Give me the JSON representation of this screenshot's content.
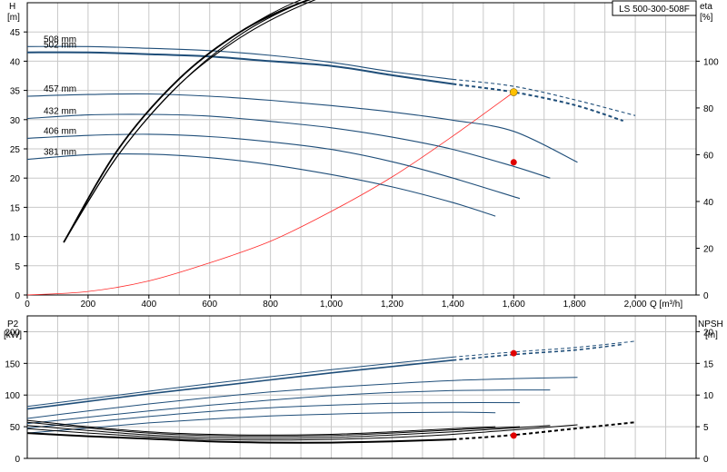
{
  "chart_data": [
    {
      "type": "line",
      "panel": "H-Q / eta",
      "title": "LS 500-300-508F",
      "xlabel": "Q [m³/h]",
      "ylabel_left": [
        "H",
        "[m]"
      ],
      "ylabel_right": [
        "eta",
        "[%]"
      ],
      "xlim": [
        0,
        2200
      ],
      "ylim_left": [
        0,
        50
      ],
      "ylim_right": [
        0,
        125
      ],
      "x_ticks": [
        "0",
        "200",
        "400",
        "600",
        "800",
        "1,000",
        "1,200",
        "1,400",
        "1,600",
        "1,800",
        "2,000"
      ],
      "x_tick_values": [
        0,
        200,
        400,
        600,
        800,
        1000,
        1200,
        1400,
        1600,
        1800,
        2000
      ],
      "y_ticks_left": [
        0,
        5,
        10,
        15,
        20,
        25,
        30,
        35,
        40,
        45
      ],
      "y_ticks_right": [
        0,
        20,
        40,
        60,
        80,
        100
      ],
      "grid": true,
      "colors": {
        "curve": "#1f4e79",
        "system": "#ff2a2a",
        "eta": "#000000",
        "duty_h": "#ffc000",
        "duty_eta": "#e00000"
      },
      "head_curves": [
        {
          "label": "508 mm",
          "x": [
            0,
            200,
            400,
            600,
            800,
            1000,
            1200,
            1400,
            1600,
            1800,
            2000
          ],
          "y": [
            42.5,
            42.5,
            42.2,
            41.8,
            41.0,
            39.8,
            38.2,
            36.9,
            35.7,
            33.4,
            30.7
          ],
          "solid_until": 1400
        },
        {
          "label": "502 mm",
          "x": [
            0,
            200,
            400,
            600,
            800,
            1000,
            1200,
            1400,
            1600,
            1800,
            1960
          ],
          "y": [
            41.5,
            41.5,
            41.2,
            40.8,
            40.0,
            39.2,
            37.6,
            36.1,
            34.7,
            32.5,
            29.8
          ],
          "solid_until": 1400
        },
        {
          "label": "457 mm",
          "x": [
            0,
            200,
            400,
            600,
            800,
            1000,
            1200,
            1400,
            1600,
            1810
          ],
          "y": [
            34.0,
            34.3,
            34.4,
            34.0,
            33.3,
            32.4,
            31.3,
            29.9,
            28.0,
            22.7
          ],
          "solid_until": 1810
        },
        {
          "label": "432 mm",
          "x": [
            0,
            200,
            400,
            600,
            800,
            1000,
            1200,
            1400,
            1600,
            1720
          ],
          "y": [
            30.2,
            30.8,
            30.9,
            30.6,
            29.7,
            28.6,
            27.0,
            24.9,
            22.0,
            20.0
          ],
          "solid_until": 1720
        },
        {
          "label": "406 mm",
          "x": [
            0,
            200,
            400,
            600,
            800,
            1000,
            1200,
            1400,
            1620
          ],
          "y": [
            26.8,
            27.3,
            27.5,
            27.1,
            26.2,
            24.9,
            22.8,
            20.0,
            16.5
          ],
          "solid_until": 1620
        },
        {
          "label": "381 mm",
          "x": [
            0,
            200,
            400,
            600,
            800,
            1000,
            1200,
            1400,
            1540
          ],
          "y": [
            23.2,
            24.0,
            24.1,
            23.5,
            22.3,
            20.6,
            18.5,
            15.8,
            13.5
          ],
          "solid_until": 1540
        }
      ],
      "eta_curves": [
        {
          "x": [
            120,
            300,
            500,
            700,
            900,
            1100,
            1300,
            1500,
            1700,
            2000
          ],
          "y": [
            9,
            25,
            37,
            45,
            50,
            53,
            55.5,
            56.5,
            57,
            56.5
          ],
          "solid_until": 1500,
          "axis": "left"
        },
        {
          "x": [
            120,
            300,
            500,
            700,
            900,
            1100,
            1300,
            1500,
            1700,
            1810
          ],
          "y": [
            9,
            25,
            37,
            45,
            50.5,
            53.5,
            55.5,
            56.5,
            56.5,
            55.5
          ],
          "solid_until": 1810,
          "axis": "left"
        },
        {
          "x": [
            120,
            300,
            500,
            700,
            900,
            1100,
            1300,
            1500,
            1720
          ],
          "y": [
            9,
            24,
            36,
            44.5,
            50,
            53.5,
            55,
            55.5,
            54
          ],
          "solid_until": 1720,
          "axis": "left"
        },
        {
          "x": [
            120,
            300,
            500,
            700,
            900,
            1100,
            1300,
            1500,
            1620
          ],
          "y": [
            9,
            24,
            36,
            44,
            49.5,
            53,
            54.5,
            53.5,
            52
          ],
          "solid_until": 1620,
          "axis": "left"
        }
      ],
      "system_curve": {
        "x": [
          0,
          200,
          400,
          600,
          800,
          1000,
          1200,
          1400,
          1600
        ],
        "y": [
          0,
          0.6,
          2.4,
          5.5,
          9.2,
          14.3,
          20.2,
          27.2,
          34.7
        ]
      },
      "duty_point": {
        "q": 1600,
        "h": 34.7,
        "eta_left": 22.7
      }
    },
    {
      "type": "line",
      "panel": "P2 / NPSH",
      "ylabel_left": [
        "P2",
        "[kW]"
      ],
      "ylabel_right": [
        "NPSH",
        "[m]"
      ],
      "xlim": [
        0,
        2200
      ],
      "ylim_left": [
        0,
        225
      ],
      "ylim_right": [
        0,
        22.5
      ],
      "y_ticks_left": [
        0,
        50,
        100,
        150,
        200
      ],
      "y_ticks_right": [
        0,
        5,
        10,
        15,
        20
      ],
      "grid": true,
      "power_curves": [
        {
          "x": [
            0,
            200,
            400,
            600,
            800,
            1000,
            1200,
            1400,
            1600,
            1800,
            2000
          ],
          "y": [
            82,
            94,
            106,
            118,
            129,
            140,
            150,
            160,
            168,
            175,
            185
          ],
          "solid_until": 1400
        },
        {
          "x": [
            0,
            200,
            400,
            600,
            800,
            1000,
            1200,
            1400,
            1600,
            1800,
            1960
          ],
          "y": [
            78,
            90,
            102,
            113,
            124,
            135,
            145,
            155,
            164,
            171,
            180
          ],
          "solid_until": 1400
        },
        {
          "x": [
            0,
            200,
            400,
            600,
            800,
            1000,
            1200,
            1400,
            1600,
            1810
          ],
          "y": [
            63,
            75,
            86,
            96,
            105,
            112,
            118,
            123,
            126,
            128
          ],
          "solid_until": 1810
        },
        {
          "x": [
            0,
            200,
            400,
            600,
            800,
            1000,
            1200,
            1400,
            1600,
            1720
          ],
          "y": [
            55,
            65,
            75,
            84,
            92,
            99,
            104,
            107,
            108,
            108
          ],
          "solid_until": 1720
        },
        {
          "x": [
            0,
            200,
            400,
            600,
            800,
            1000,
            1200,
            1400,
            1620
          ],
          "y": [
            48,
            57,
            66,
            74,
            80,
            84,
            87,
            88,
            88
          ],
          "solid_until": 1620
        },
        {
          "x": [
            0,
            200,
            400,
            600,
            800,
            1000,
            1200,
            1400,
            1540
          ],
          "y": [
            40,
            48,
            56,
            62,
            67,
            70,
            72,
            73,
            72
          ],
          "solid_until": 1540
        }
      ],
      "npsh_curves": [
        {
          "x": [
            0,
            200,
            400,
            600,
            800,
            1000,
            1200,
            1400,
            1600,
            1800,
            2000
          ],
          "y": [
            4.0,
            3.5,
            3.1,
            2.7,
            2.5,
            2.5,
            2.7,
            3.0,
            3.7,
            4.7,
            5.7
          ],
          "solid_until": 1400
        },
        {
          "x": [
            0,
            200,
            400,
            600,
            800,
            1000,
            1200,
            1400,
            1600,
            1810
          ],
          "y": [
            4.7,
            4.0,
            3.4,
            3.0,
            2.9,
            3.0,
            3.3,
            3.8,
            4.5,
            5.3
          ],
          "solid_until": 1810
        },
        {
          "x": [
            0,
            200,
            400,
            600,
            800,
            1000,
            1200,
            1400,
            1600,
            1720
          ],
          "y": [
            5.2,
            4.4,
            3.7,
            3.3,
            3.2,
            3.3,
            3.7,
            4.2,
            4.8,
            5.2
          ],
          "solid_until": 1720
        },
        {
          "x": [
            0,
            200,
            400,
            600,
            800,
            1000,
            1200,
            1400,
            1620
          ],
          "y": [
            5.7,
            4.8,
            4.0,
            3.6,
            3.5,
            3.6,
            4.0,
            4.5,
            5.0
          ],
          "solid_until": 1620
        },
        {
          "x": [
            0,
            200,
            400,
            600,
            800,
            1000,
            1200,
            1400,
            1540
          ],
          "y": [
            6.0,
            5.0,
            4.2,
            3.8,
            3.7,
            3.8,
            4.2,
            4.7,
            5.0
          ],
          "solid_until": 1540
        }
      ],
      "duty_point": {
        "q": 1600,
        "p2": 166,
        "npsh": 3.6
      }
    }
  ]
}
